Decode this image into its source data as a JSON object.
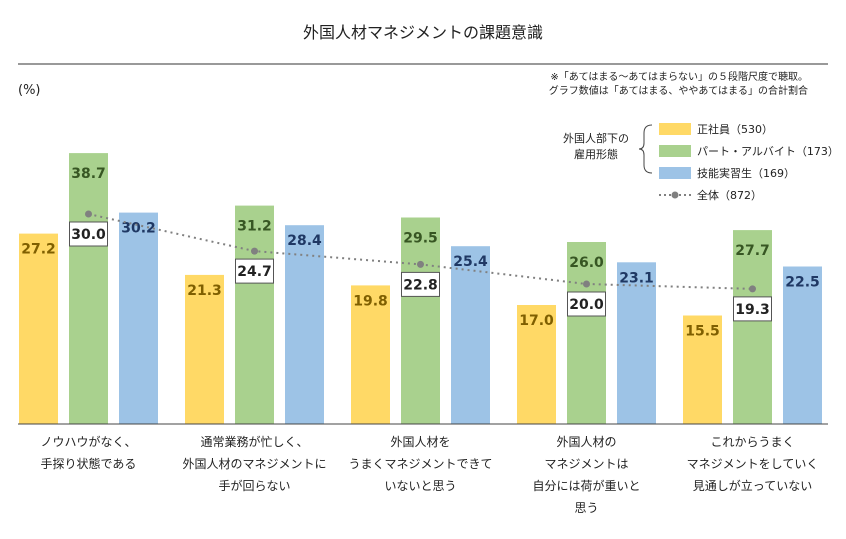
{
  "chart_data": {
    "type": "bar",
    "title": "外国人材マネジメントの課題意識",
    "notes": [
      "※「あてはまる～あてはまらない」の５段階尺度で聴取。",
      "グラフ数値は「あてはまる、ややあてはまる」の合計割合"
    ],
    "unit_label": "(%)",
    "legend_group_label": [
      "外国人部下の",
      "雇用形態"
    ],
    "categories": [
      [
        "ノウハウがなく、",
        "手探り状態である"
      ],
      [
        "通常業務が忙しく、",
        "外国人材のマネジメントに",
        "手が回らない"
      ],
      [
        "外国人材を",
        "うまくマネジメントできて",
        "いないと思う"
      ],
      [
        "外国人材の",
        "マネジメントは",
        "自分には荷が重いと",
        "思う"
      ],
      [
        "これからうまく",
        "マネジメントをしていく",
        "見通しが立っていない"
      ]
    ],
    "series": [
      {
        "name": "正社員（530）",
        "color": "#ffd966",
        "label_color": "#7f5f00",
        "values": [
          27.2,
          21.3,
          19.8,
          17.0,
          15.5
        ]
      },
      {
        "name": "パート・アルバイト（173）",
        "color": "#a9d18e",
        "label_color": "#375623",
        "values": [
          38.7,
          31.2,
          29.5,
          26.0,
          27.7
        ]
      },
      {
        "name": "技能実習生（169）",
        "color": "#9dc3e6",
        "label_color": "#1f3864",
        "values": [
          30.2,
          28.4,
          25.4,
          23.1,
          22.5
        ]
      }
    ],
    "total_line": {
      "name": "全体（872）",
      "color": "#808080",
      "label_color": "#222222",
      "values": [
        30.0,
        24.7,
        22.8,
        20.0,
        19.3
      ]
    },
    "ylim": [
      0,
      50
    ]
  }
}
